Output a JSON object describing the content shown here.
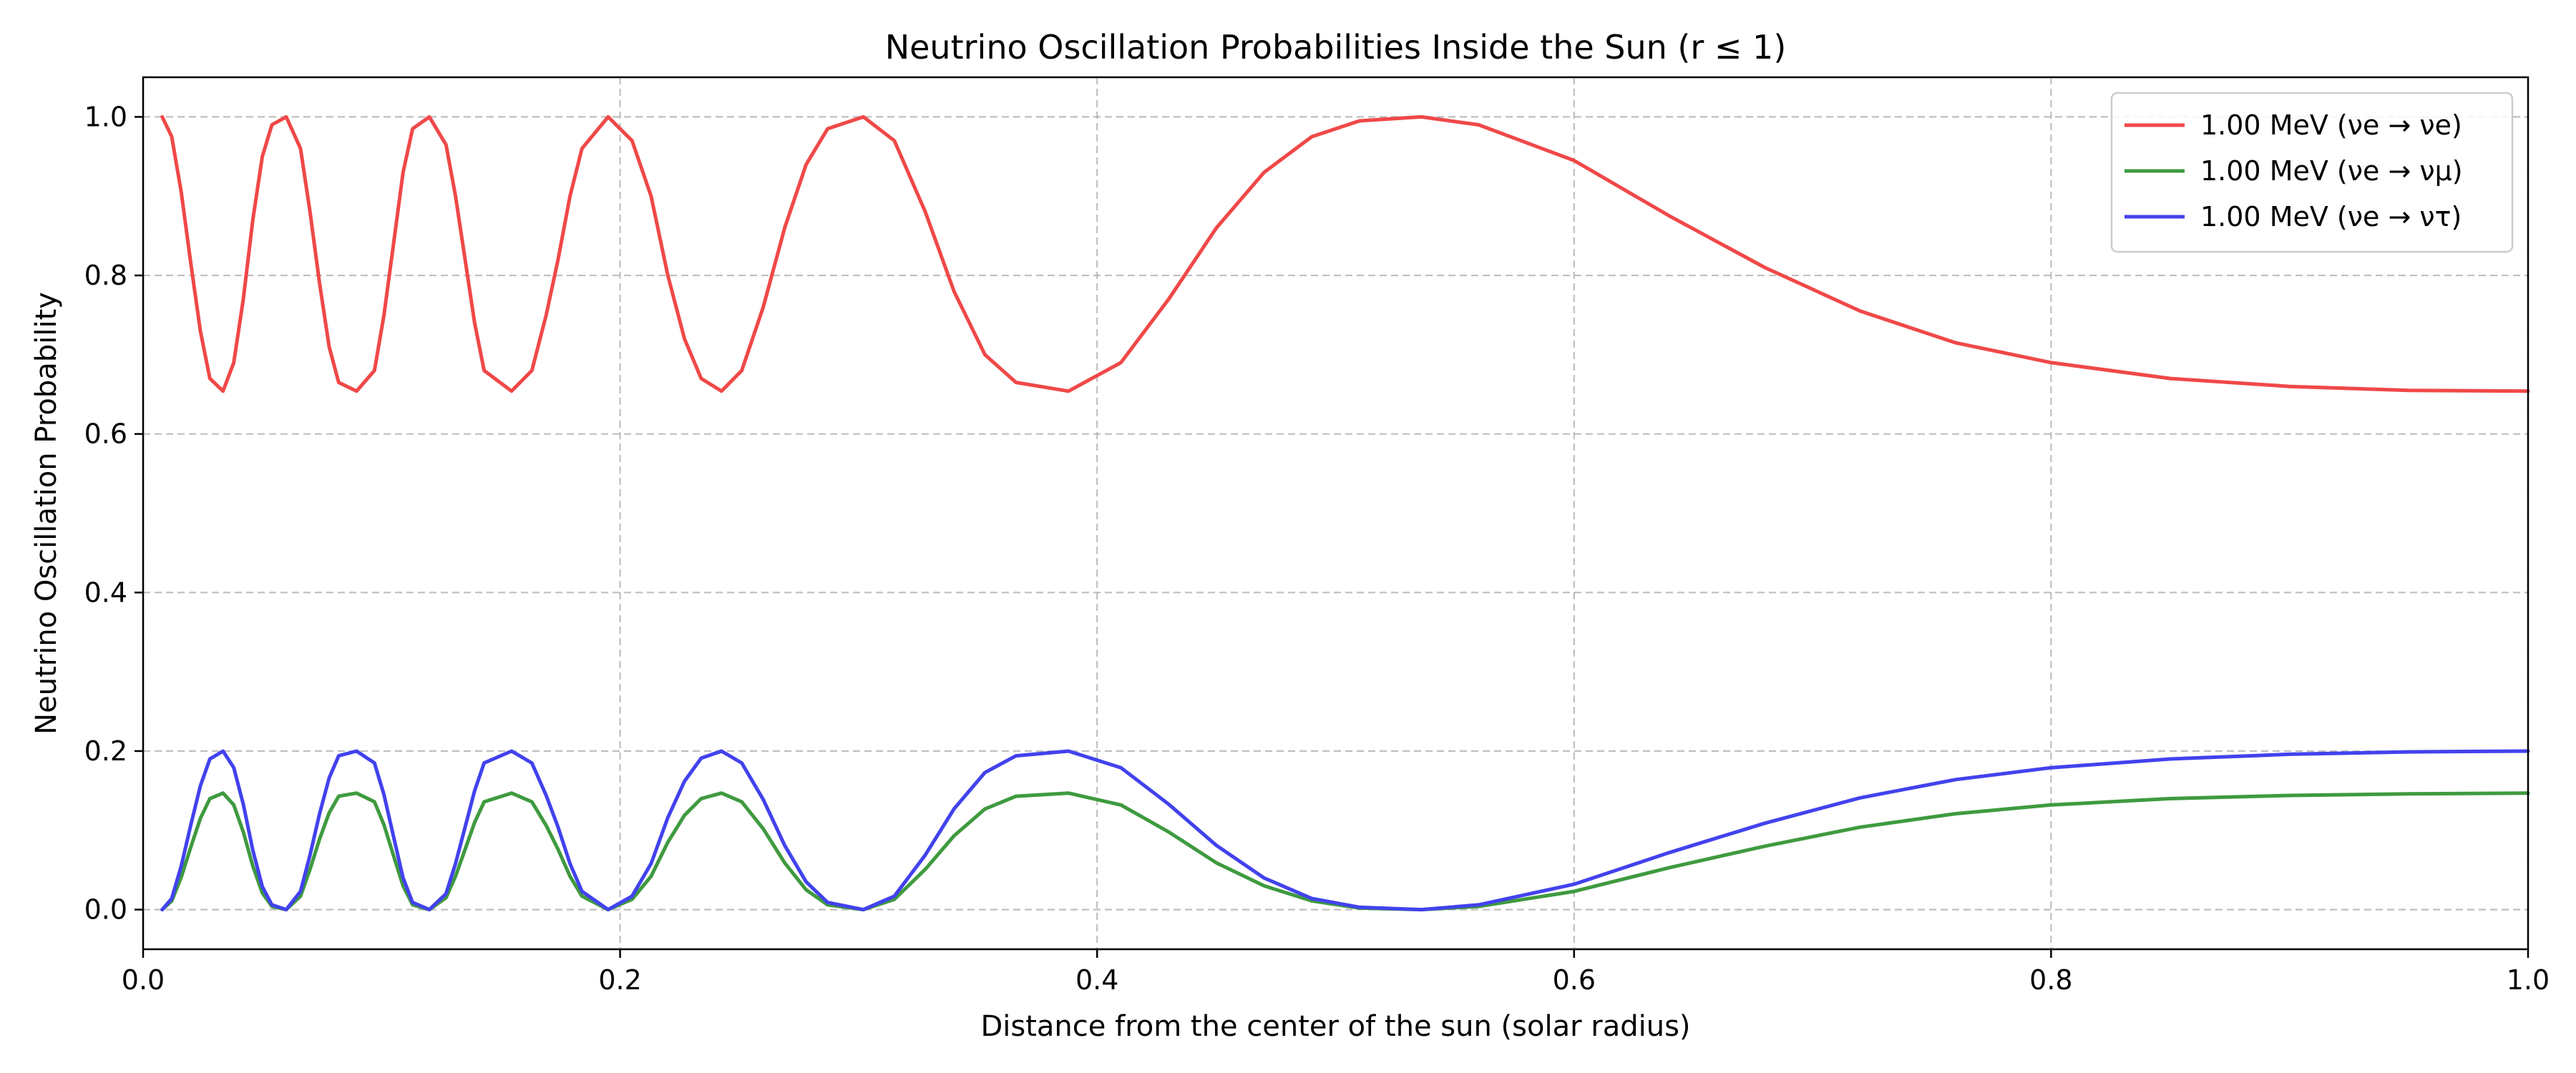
{
  "chart_data": {
    "type": "line",
    "title": "Neutrino Oscillation Probabilities Inside the Sun (r ≤ 1)",
    "xlabel": "Distance from the center of the sun (solar radius)",
    "ylabel": "Neutrino Oscillation Probability",
    "xlim": [
      0.0,
      1.0
    ],
    "ylim": [
      -0.05,
      1.05
    ],
    "xticks": [
      0.0,
      0.2,
      0.4,
      0.6,
      0.8,
      1.0
    ],
    "xtick_labels": [
      "0.0",
      "0.2",
      "0.4",
      "0.6",
      "0.8",
      "1.0"
    ],
    "yticks": [
      0.0,
      0.2,
      0.4,
      0.6,
      0.8,
      1.0
    ],
    "ytick_labels": [
      "0.0",
      "0.2",
      "0.4",
      "0.6",
      "0.8",
      "1.0"
    ],
    "grid": true,
    "legend_position": "top-right",
    "series": [
      {
        "name": "1.00 MeV (νe → νe)",
        "color": "#f04848",
        "x": [
          0.008,
          0.012,
          0.016,
          0.02,
          0.024,
          0.028,
          0.0335,
          0.038,
          0.042,
          0.046,
          0.05,
          0.054,
          0.06,
          0.066,
          0.07,
          0.074,
          0.078,
          0.082,
          0.0895,
          0.097,
          0.101,
          0.105,
          0.109,
          0.113,
          0.12,
          0.127,
          0.131,
          0.135,
          0.139,
          0.143,
          0.1545,
          0.163,
          0.169,
          0.174,
          0.179,
          0.184,
          0.195,
          0.205,
          0.213,
          0.22,
          0.227,
          0.234,
          0.2425,
          0.251,
          0.26,
          0.269,
          0.278,
          0.287,
          0.302,
          0.315,
          0.328,
          0.34,
          0.353,
          0.366,
          0.388,
          0.41,
          0.43,
          0.45,
          0.47,
          0.49,
          0.51,
          0.536,
          0.56,
          0.6,
          0.64,
          0.68,
          0.72,
          0.76,
          0.8,
          0.85,
          0.9,
          0.95,
          1.0
        ],
        "y": [
          1.0,
          0.975,
          0.905,
          0.815,
          0.73,
          0.67,
          0.654,
          0.69,
          0.77,
          0.87,
          0.95,
          0.99,
          1.0,
          0.96,
          0.88,
          0.79,
          0.71,
          0.665,
          0.654,
          0.68,
          0.75,
          0.84,
          0.93,
          0.985,
          1.0,
          0.965,
          0.9,
          0.82,
          0.74,
          0.68,
          0.654,
          0.68,
          0.75,
          0.82,
          0.9,
          0.96,
          1.0,
          0.97,
          0.9,
          0.8,
          0.72,
          0.67,
          0.654,
          0.68,
          0.76,
          0.86,
          0.94,
          0.985,
          1.0,
          0.97,
          0.88,
          0.78,
          0.7,
          0.665,
          0.654,
          0.69,
          0.77,
          0.86,
          0.93,
          0.975,
          0.995,
          1.0,
          0.99,
          0.945,
          0.875,
          0.81,
          0.755,
          0.715,
          0.69,
          0.67,
          0.66,
          0.655,
          0.654
        ]
      },
      {
        "name": "1.00 MeV (νe → νμ)",
        "color": "#3f9a3f",
        "x": [
          0.008,
          0.012,
          0.016,
          0.02,
          0.024,
          0.028,
          0.0335,
          0.038,
          0.042,
          0.046,
          0.05,
          0.054,
          0.06,
          0.066,
          0.07,
          0.074,
          0.078,
          0.082,
          0.0895,
          0.097,
          0.101,
          0.105,
          0.109,
          0.113,
          0.12,
          0.127,
          0.131,
          0.135,
          0.139,
          0.143,
          0.1545,
          0.163,
          0.169,
          0.174,
          0.179,
          0.184,
          0.195,
          0.205,
          0.213,
          0.22,
          0.227,
          0.234,
          0.2425,
          0.251,
          0.26,
          0.269,
          0.278,
          0.287,
          0.302,
          0.315,
          0.328,
          0.34,
          0.353,
          0.366,
          0.388,
          0.41,
          0.43,
          0.45,
          0.47,
          0.49,
          0.51,
          0.536,
          0.56,
          0.6,
          0.64,
          0.68,
          0.72,
          0.76,
          0.8,
          0.85,
          0.9,
          0.95,
          1.0
        ],
        "y": [
          0.0,
          0.011,
          0.041,
          0.079,
          0.115,
          0.14,
          0.147,
          0.132,
          0.098,
          0.055,
          0.021,
          0.004,
          0.0,
          0.017,
          0.051,
          0.089,
          0.122,
          0.143,
          0.147,
          0.136,
          0.107,
          0.068,
          0.03,
          0.006,
          0.0,
          0.015,
          0.042,
          0.076,
          0.11,
          0.136,
          0.147,
          0.136,
          0.106,
          0.076,
          0.042,
          0.017,
          0.0,
          0.013,
          0.042,
          0.085,
          0.119,
          0.14,
          0.147,
          0.136,
          0.102,
          0.059,
          0.025,
          0.006,
          0.0,
          0.013,
          0.051,
          0.093,
          0.127,
          0.143,
          0.147,
          0.132,
          0.098,
          0.059,
          0.03,
          0.011,
          0.002,
          0.0,
          0.004,
          0.023,
          0.053,
          0.08,
          0.104,
          0.121,
          0.132,
          0.14,
          0.144,
          0.146,
          0.147
        ]
      },
      {
        "name": "1.00 MeV (νe → ντ)",
        "color": "#4242ee",
        "x": [
          0.008,
          0.012,
          0.016,
          0.02,
          0.024,
          0.028,
          0.0335,
          0.038,
          0.042,
          0.046,
          0.05,
          0.054,
          0.06,
          0.066,
          0.07,
          0.074,
          0.078,
          0.082,
          0.0895,
          0.097,
          0.101,
          0.105,
          0.109,
          0.113,
          0.12,
          0.127,
          0.131,
          0.135,
          0.139,
          0.143,
          0.1545,
          0.163,
          0.169,
          0.174,
          0.179,
          0.184,
          0.195,
          0.205,
          0.213,
          0.22,
          0.227,
          0.234,
          0.2425,
          0.251,
          0.26,
          0.269,
          0.278,
          0.287,
          0.302,
          0.315,
          0.328,
          0.34,
          0.353,
          0.366,
          0.388,
          0.41,
          0.43,
          0.45,
          0.47,
          0.49,
          0.51,
          0.536,
          0.56,
          0.6,
          0.64,
          0.68,
          0.72,
          0.76,
          0.8,
          0.85,
          0.9,
          0.95,
          1.0
        ],
        "y": [
          0.0,
          0.014,
          0.055,
          0.107,
          0.156,
          0.19,
          0.2,
          0.179,
          0.133,
          0.075,
          0.029,
          0.006,
          0.0,
          0.023,
          0.069,
          0.121,
          0.166,
          0.194,
          0.2,
          0.185,
          0.145,
          0.092,
          0.04,
          0.009,
          0.0,
          0.02,
          0.058,
          0.104,
          0.15,
          0.185,
          0.2,
          0.185,
          0.144,
          0.104,
          0.058,
          0.023,
          0.0,
          0.017,
          0.058,
          0.116,
          0.162,
          0.191,
          0.2,
          0.185,
          0.139,
          0.081,
          0.035,
          0.009,
          0.0,
          0.017,
          0.069,
          0.127,
          0.173,
          0.194,
          0.2,
          0.179,
          0.133,
          0.081,
          0.04,
          0.014,
          0.003,
          0.0,
          0.006,
          0.032,
          0.072,
          0.109,
          0.141,
          0.164,
          0.179,
          0.19,
          0.196,
          0.199,
          0.2
        ]
      }
    ]
  }
}
